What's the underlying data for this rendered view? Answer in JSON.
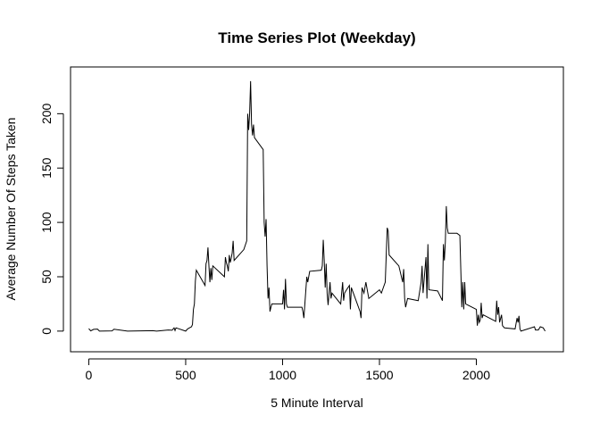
{
  "chart_data": {
    "type": "line",
    "title": "Time Series Plot (Weekday)",
    "x_label": "5 Minute Interval",
    "y_label": "Average Number Of Steps Taken",
    "color": "#000000",
    "x": [
      0,
      10,
      25,
      45,
      55,
      120,
      130,
      200,
      230,
      330,
      350,
      410,
      430,
      440,
      445,
      450,
      500,
      510,
      520,
      525,
      530,
      535,
      540,
      545,
      550,
      555,
      600,
      605,
      610,
      615,
      620,
      625,
      630,
      635,
      640,
      700,
      705,
      710,
      715,
      720,
      725,
      730,
      735,
      740,
      745,
      750,
      800,
      815,
      820,
      825,
      830,
      835,
      840,
      845,
      850,
      855,
      900,
      905,
      910,
      915,
      920,
      925,
      930,
      935,
      940,
      945,
      1000,
      1005,
      1010,
      1015,
      1020,
      1025,
      1100,
      1105,
      1110,
      1115,
      1125,
      1130,
      1140,
      1200,
      1205,
      1210,
      1215,
      1220,
      1225,
      1230,
      1235,
      1240,
      1245,
      1250,
      1255,
      1300,
      1310,
      1315,
      1320,
      1330,
      1345,
      1350,
      1355,
      1400,
      1405,
      1410,
      1420,
      1430,
      1445,
      1500,
      1510,
      1530,
      1540,
      1545,
      1550,
      1600,
      1620,
      1625,
      1630,
      1635,
      1645,
      1700,
      1715,
      1720,
      1725,
      1740,
      1745,
      1750,
      1755,
      1800,
      1825,
      1830,
      1835,
      1840,
      1845,
      1850,
      1855,
      1900,
      1915,
      1920,
      1925,
      1930,
      1935,
      1940,
      1945,
      2000,
      2005,
      2010,
      2015,
      2020,
      2025,
      2030,
      2035,
      2100,
      2105,
      2110,
      2115,
      2120,
      2130,
      2135,
      2145,
      2200,
      2210,
      2215,
      2220,
      2225,
      2230,
      2300,
      2305,
      2320,
      2330,
      2345,
      2355
    ],
    "values": [
      2.3,
      0.2,
      1.6,
      1.8,
      0,
      0.2,
      1.7,
      0,
      0.1,
      0.4,
      0,
      1,
      0.8,
      3,
      0.5,
      3,
      0,
      2,
      3,
      3.5,
      4,
      6,
      20,
      25,
      46,
      56,
      42,
      62,
      65,
      77,
      60,
      45,
      58,
      47,
      60,
      50,
      68,
      63,
      60,
      55,
      70,
      63,
      67,
      72,
      83,
      65,
      75,
      83,
      200,
      185,
      200,
      230,
      190,
      180,
      190,
      178,
      167,
      100,
      87,
      103,
      60,
      30,
      40,
      18,
      22,
      25,
      25,
      38,
      20,
      48,
      25,
      22,
      22,
      18,
      12,
      25,
      50,
      45,
      55,
      56,
      60,
      84,
      65,
      40,
      62,
      35,
      24,
      35,
      45,
      30,
      35,
      25,
      45,
      28,
      35,
      38,
      42,
      20,
      40,
      18,
      12,
      40,
      35,
      45,
      30,
      38,
      35,
      45,
      95,
      92,
      70,
      60,
      45,
      57,
      30,
      22,
      30,
      28,
      45,
      60,
      35,
      68,
      30,
      80,
      38,
      37,
      28,
      80,
      65,
      82,
      115,
      95,
      90,
      90,
      88,
      55,
      22,
      45,
      20,
      45,
      25,
      20,
      5,
      15,
      8,
      10,
      26,
      12,
      15,
      9,
      28,
      15,
      22,
      8,
      15,
      5,
      3,
      2,
      12,
      8,
      14,
      2,
      0,
      4,
      1,
      1,
      4,
      3,
      0
    ],
    "xlim": [
      -94.2,
      2449.2
    ],
    "ylim": [
      -19,
      243
    ],
    "xticks": [
      0,
      500,
      1000,
      1500,
      2000
    ],
    "yticks": [
      0,
      50,
      100,
      150,
      200
    ]
  }
}
